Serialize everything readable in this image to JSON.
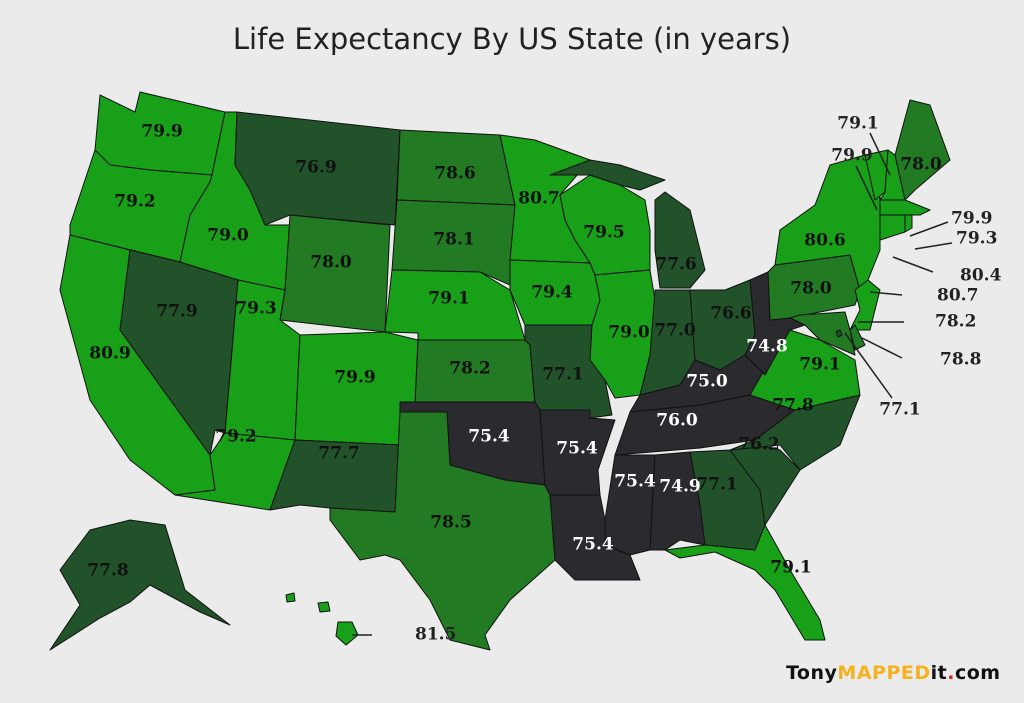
{
  "title": "Life Expectancy By US State (in years)",
  "logo": {
    "part1": "Tony",
    "part2": "MAPPED",
    "part3": "it",
    "dot": ".",
    "part4": "com"
  },
  "colors": {
    "high": "#19a019",
    "mid": "#227a22",
    "low": "#22522a",
    "lowest": "#2b2b2f",
    "background": "#ebebeb"
  },
  "legend_rule": "color by value: >=79 bright green, 78-78.9 medium green, 76.1-77.9 dark green, <=76.0 near-black",
  "states": {
    "WA": 79.9,
    "OR": 79.2,
    "CA": 80.9,
    "NV": 77.9,
    "ID": 79.0,
    "MT": 76.9,
    "WY": 78.0,
    "UT": 79.3,
    "AZ": 79.2,
    "CO": 79.9,
    "NM": 77.7,
    "ND": 78.6,
    "SD": 78.1,
    "NE": 79.1,
    "KS": 78.2,
    "OK": 75.4,
    "TX": 78.5,
    "MN": 80.7,
    "IA": 79.4,
    "MO": 77.1,
    "AR": 75.4,
    "LA": 75.4,
    "WI": 79.5,
    "IL": 79.0,
    "MI": 77.6,
    "IN": 77.0,
    "OH": 76.6,
    "KY": 75.0,
    "TN": 76.0,
    "MS": 75.4,
    "AL": 74.9,
    "GA": 77.1,
    "FL": 79.1,
    "SC": 76.2,
    "NC": 77.8,
    "VA": 79.1,
    "WV": 74.8,
    "PA": 78.0,
    "NY": 80.6,
    "NJ": 80.7,
    "DE": 78.2,
    "MD": 78.8,
    "DC": 77.1,
    "VT": 79.9,
    "NH": 79.1,
    "ME": 78.0,
    "MA": 79.9,
    "CT": 80.4,
    "RI": 79.3,
    "AK": 77.8,
    "HI": 81.5
  }
}
